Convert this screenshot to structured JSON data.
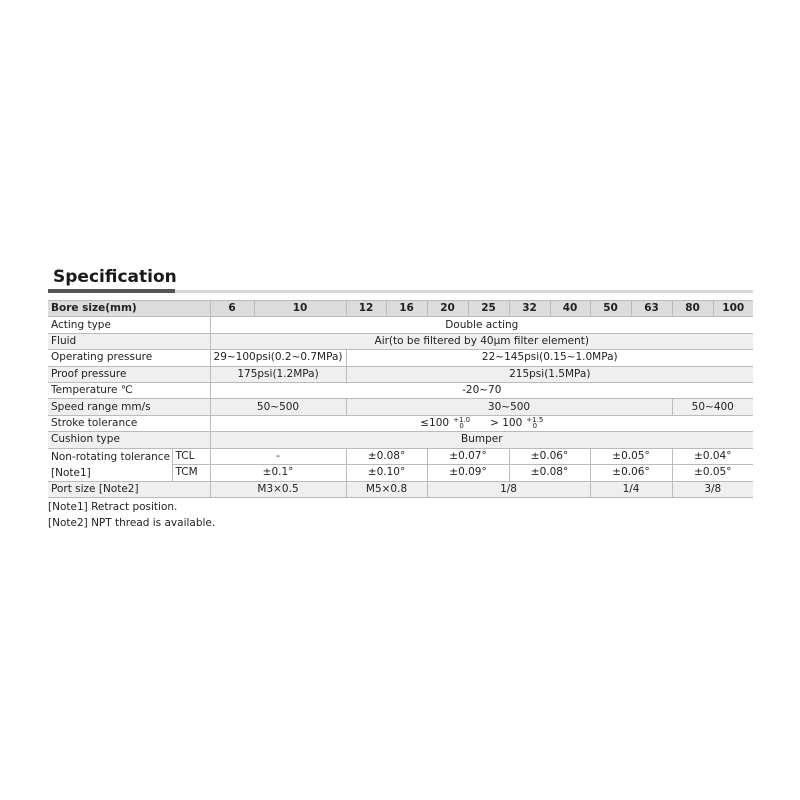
{
  "title": "Specification",
  "header": {
    "label": "Bore size(mm)",
    "bores": [
      "6",
      "10",
      "12",
      "16",
      "20",
      "25",
      "32",
      "40",
      "50",
      "63",
      "80",
      "100"
    ]
  },
  "rows": {
    "acting": {
      "label": "Acting type",
      "value": "Double acting"
    },
    "fluid": {
      "label": "Fluid",
      "value": "Air(to be filtered by 40μm filter element)"
    },
    "operating": {
      "label": "Operating pressure",
      "small": "29~100psi(0.2~0.7MPa)",
      "large": "22~145psi(0.15~1.0MPa)"
    },
    "proof": {
      "label": "Proof pressure",
      "small": "175psi(1.2MPa)",
      "large": "215psi(1.5MPa)"
    },
    "temperature": {
      "label": "Temperature  ℃",
      "value": "-20~70"
    },
    "speed": {
      "label": "Speed range  mm/s",
      "values": [
        "50~500",
        "30~500",
        "50~400"
      ]
    },
    "stroke": {
      "label": "Stroke tolerance",
      "a": "≤100",
      "a_plus": "+1.0",
      "a_minus": "0",
      "b": "> 100",
      "b_plus": "+1.5",
      "b_minus": "0"
    },
    "cushion": {
      "label": "Cushion type",
      "value": "Bumper"
    },
    "nonrot": {
      "label": "Non-rotating tolerance",
      "note": "[Note1]",
      "tcl": {
        "label": "TCL",
        "values": [
          "-",
          "±0.08°",
          "±0.07°",
          "±0.06°",
          "±0.05°",
          "±0.04°"
        ]
      },
      "tcm": {
        "label": "TCM",
        "values": [
          "±0.1°",
          "±0.10°",
          "±0.09°",
          "±0.08°",
          "±0.06°",
          "±0.05°"
        ]
      }
    },
    "port": {
      "label": "Port size [Note2]",
      "values": [
        "M3×0.5",
        "M5×0.8",
        "1/8",
        "1/4",
        "3/8"
      ]
    }
  },
  "notes": [
    "[Note1] Retract position.",
    "[Note2] NPT thread is available."
  ]
}
